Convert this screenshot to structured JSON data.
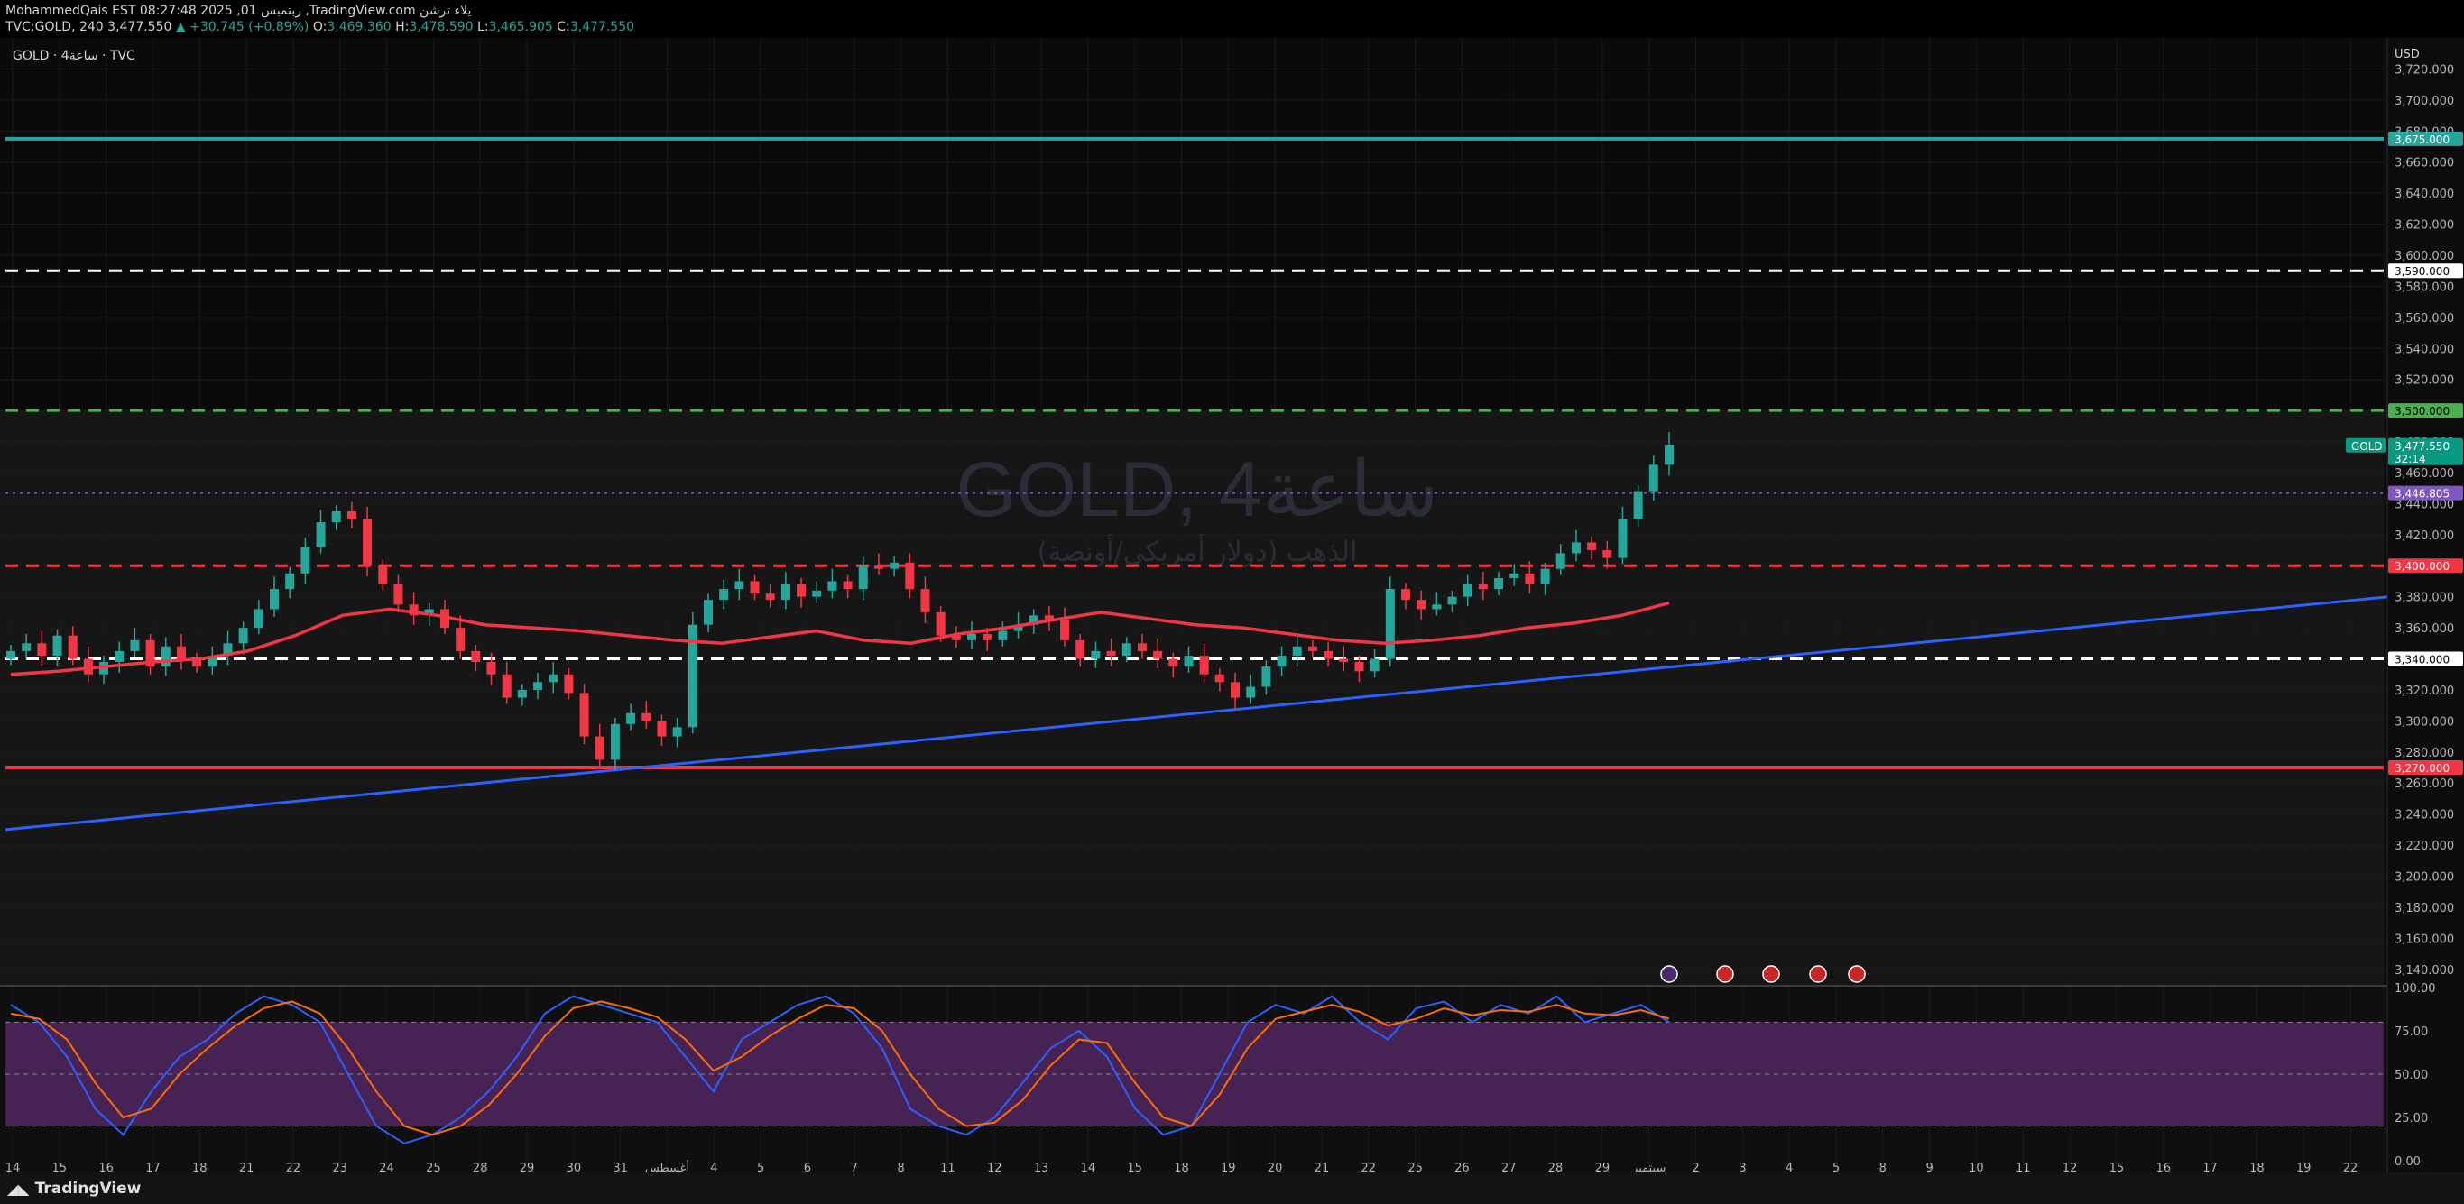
{
  "header": {
    "user": "MohammedQais",
    "clock": "EST 08:27:48 2025 ,01 ربتمبس",
    "site": ",TradingView.com",
    "site_suffix": "يلاء ترشن",
    "symbol": "TVC:GOLD, 240",
    "last": "3,477.550",
    "change": "▲ +30.745 (+0.89%)",
    "o_label": "O:",
    "o": "3,469.360",
    "h_label": "H:",
    "h": "3,478.590",
    "l_label": "L:",
    "l": "3,465.905",
    "c_label": "C:",
    "c": "3,477.550"
  },
  "legend": {
    "label": "GOLD · 4ساعة · TVC"
  },
  "watermark": {
    "title": "GOLD, 4ساعة",
    "subtitle": "الذهب (دولار أمريكي/أونصة)"
  },
  "currency": "USD",
  "price_ticks": [
    "3,720.000",
    "3,700.000",
    "3,680.000",
    "3,660.000",
    "3,640.000",
    "3,620.000",
    "3,600.000",
    "3,580.000",
    "3,560.000",
    "3,540.000",
    "3,520.000",
    "3,500.000",
    "3,480.000",
    "3,460.000",
    "3,440.000",
    "3,420.000",
    "3,400.000",
    "3,380.000",
    "3,360.000",
    "3,340.000",
    "3,320.000",
    "3,300.000",
    "3,280.000",
    "3,260.000",
    "3,240.000",
    "3,220.000",
    "3,200.000",
    "3,180.000",
    "3,160.000",
    "3,140.000"
  ],
  "price_tags": [
    {
      "text": "3,675.000",
      "price": 3675,
      "color": "#26a69a",
      "text_color": "#ffffff"
    },
    {
      "text": "3,590.000",
      "price": 3590,
      "color": "#ffffff",
      "text_color": "#000000"
    },
    {
      "text": "3,500.000",
      "price": 3500,
      "color": "#4caf50",
      "text_color": "#000000"
    },
    {
      "text": "3,446.805",
      "price": 3446.805,
      "color": "#7e57c2",
      "text_color": "#ffffff"
    },
    {
      "text": "3,400.000",
      "price": 3400,
      "color": "#f23645",
      "text_color": "#ffffff"
    },
    {
      "text": "3,340.000",
      "price": 3340,
      "color": "#ffffff",
      "text_color": "#000000"
    },
    {
      "text": "3,270.000",
      "price": 3270,
      "color": "#f23645",
      "text_color": "#ffffff"
    }
  ],
  "current_price": {
    "symbol": "GOLD",
    "price": "3,477.550",
    "value": 3477.55,
    "countdown": "32:14",
    "color": "#089981"
  },
  "horizontal_levels": [
    {
      "price": 3675,
      "style": "solid",
      "color": "#26a69a"
    },
    {
      "price": 3590,
      "style": "dashed",
      "color": "#ffffff"
    },
    {
      "price": 3500,
      "style": "dashed",
      "color": "#4caf50"
    },
    {
      "price": 3446.805,
      "style": "dotted",
      "color": "#7e57c2"
    },
    {
      "price": 3400,
      "style": "dashed",
      "color": "#f23645"
    },
    {
      "price": 3340,
      "style": "dashed",
      "color": "#ffffff"
    },
    {
      "price": 3270,
      "style": "solid",
      "color": "#f23645"
    }
  ],
  "time_labels": [
    "14",
    "15",
    "16",
    "17",
    "18",
    "21",
    "22",
    "23",
    "24",
    "25",
    "28",
    "29",
    "30",
    "31",
    "أغسطس",
    "4",
    "5",
    "6",
    "7",
    "8",
    "11",
    "12",
    "13",
    "14",
    "15",
    "18",
    "19",
    "20",
    "21",
    "22",
    "25",
    "26",
    "27",
    "28",
    "29",
    "سبتمبر",
    "2",
    "3",
    "4",
    "5",
    "8",
    "9",
    "10",
    "11",
    "12",
    "15",
    "16",
    "17",
    "18",
    "19",
    "22"
  ],
  "oscillator_ticks": [
    "100.00",
    "75.00",
    "50.00",
    "25.00",
    "0.00"
  ],
  "oscillator_band": [
    20,
    80
  ],
  "event_icons": [
    "lightning-icon",
    "us-flag-icon",
    "us-flag-icon",
    "us-flag-icon",
    "us-flag-icon"
  ],
  "branding": {
    "text": "TradingView"
  },
  "colors": {
    "up": "#26a69a",
    "down": "#f23645",
    "trendline": "#2962ff",
    "ma": "#f23645",
    "stoch_k": "#2962ff",
    "stoch_d": "#ff6d00",
    "band": "#5b2a6e"
  },
  "chart_data": {
    "type": "candlestick",
    "ylim": [
      3130,
      3740
    ],
    "moving_average": [
      3330,
      3332,
      3335,
      3338,
      3340,
      3345,
      3355,
      3368,
      3372,
      3368,
      3362,
      3360,
      3358,
      3355,
      3352,
      3350,
      3354,
      3358,
      3352,
      3350,
      3356,
      3360,
      3365,
      3370,
      3366,
      3362,
      3360,
      3356,
      3352,
      3350,
      3352,
      3355,
      3360,
      3363,
      3368,
      3376
    ],
    "trendline": [
      [
        0,
        3230
      ],
      [
        1,
        3380
      ]
    ],
    "stoch_k": [
      90,
      80,
      60,
      30,
      15,
      40,
      60,
      70,
      85,
      95,
      90,
      80,
      50,
      20,
      10,
      15,
      25,
      40,
      60,
      85,
      95,
      90,
      85,
      80,
      60,
      40,
      70,
      80,
      90,
      95,
      85,
      65,
      30,
      20,
      15,
      25,
      45,
      65,
      75,
      60,
      30,
      15,
      20,
      50,
      80,
      90,
      85,
      95,
      80,
      70,
      88,
      92,
      80,
      90,
      85,
      95,
      80,
      85,
      90,
      80
    ],
    "stoch_d": [
      85,
      82,
      70,
      45,
      25,
      30,
      50,
      65,
      78,
      88,
      92,
      85,
      65,
      40,
      20,
      15,
      20,
      32,
      50,
      72,
      88,
      92,
      88,
      83,
      70,
      52,
      60,
      72,
      82,
      90,
      88,
      75,
      50,
      30,
      20,
      22,
      35,
      55,
      70,
      68,
      45,
      25,
      20,
      38,
      65,
      82,
      86,
      90,
      86,
      78,
      82,
      88,
      84,
      87,
      86,
      90,
      85,
      84,
      87,
      82
    ]
  }
}
